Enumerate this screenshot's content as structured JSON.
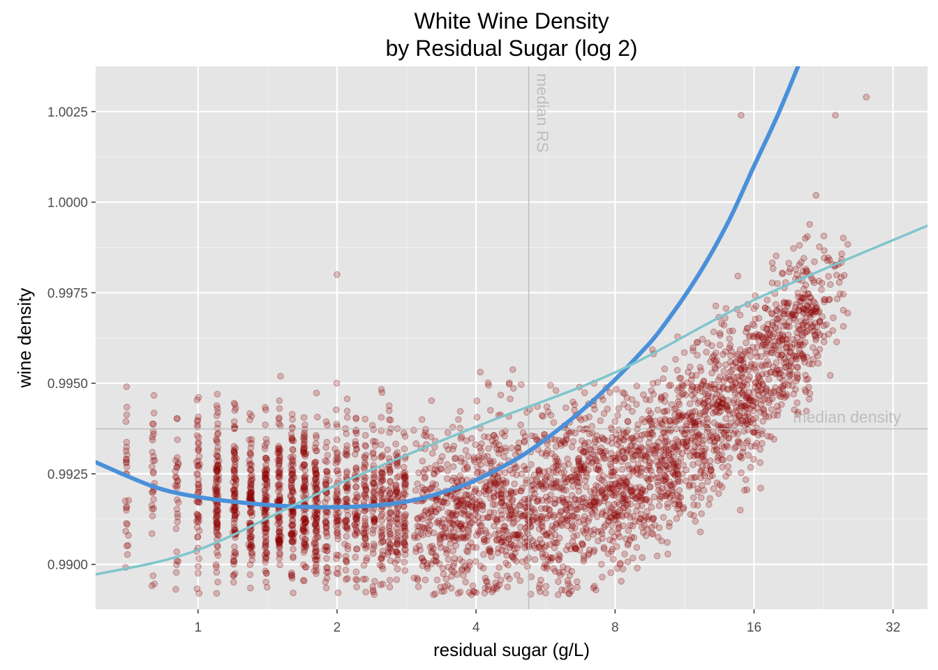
{
  "chart_data": {
    "type": "scatter",
    "title": [
      "White Wine Density",
      "by Residual Sugar (log 2)"
    ],
    "xlabel": "residual sugar (g/L)",
    "ylabel": "wine density",
    "x_scale": "log2",
    "xlim": [
      0.6,
      38
    ],
    "ylim": [
      0.98876,
      1.00375
    ],
    "x_ticks": [
      1,
      2,
      4,
      8,
      16,
      32
    ],
    "x_tick_labels": [
      "1",
      "2",
      "4",
      "8",
      "16",
      "32"
    ],
    "y_ticks": [
      0.99,
      0.9925,
      0.995,
      0.9975,
      1.0,
      1.0025
    ],
    "y_tick_labels": [
      "0.9900",
      "0.9925",
      "0.9950",
      "0.9975",
      "1.0000",
      "1.0025"
    ],
    "grid": true,
    "background": "#e5e5e5",
    "point_color": "#8b0000",
    "median_rs": 5.2,
    "median_rs_label": "median  RS",
    "median_density": 0.99374,
    "median_density_label": "median density",
    "reference_line_color": "#bdbdbd",
    "series": [
      {
        "type": "line",
        "color": "#4a90d9",
        "points": [
          [
            0.6,
            0.99282
          ],
          [
            0.8,
            0.99215
          ],
          [
            1.0,
            0.99186
          ],
          [
            1.3,
            0.99168
          ],
          [
            1.6,
            0.9916
          ],
          [
            2.0,
            0.99158
          ],
          [
            2.5,
            0.99164
          ],
          [
            3.0,
            0.9918
          ],
          [
            3.5,
            0.99205
          ],
          [
            4.0,
            0.99233
          ],
          [
            5.0,
            0.99298
          ],
          [
            6.0,
            0.9937
          ],
          [
            7.0,
            0.9944
          ],
          [
            8.0,
            0.9951
          ],
          [
            9.0,
            0.99578
          ],
          [
            10.0,
            0.99645
          ],
          [
            12.0,
            0.9979
          ],
          [
            14.0,
            0.9994
          ],
          [
            16.0,
            1.001
          ],
          [
            18.0,
            1.0024
          ],
          [
            20.0,
            1.0038
          ]
        ]
      },
      {
        "type": "line",
        "color": "#7fc5cc",
        "points": [
          [
            0.6,
            0.98972
          ],
          [
            1.0,
            0.9904
          ],
          [
            2.0,
            0.9922
          ],
          [
            4.0,
            0.9938
          ],
          [
            8.0,
            0.9953
          ],
          [
            16.0,
            0.9973
          ],
          [
            38.0,
            0.99935
          ]
        ]
      }
    ]
  }
}
